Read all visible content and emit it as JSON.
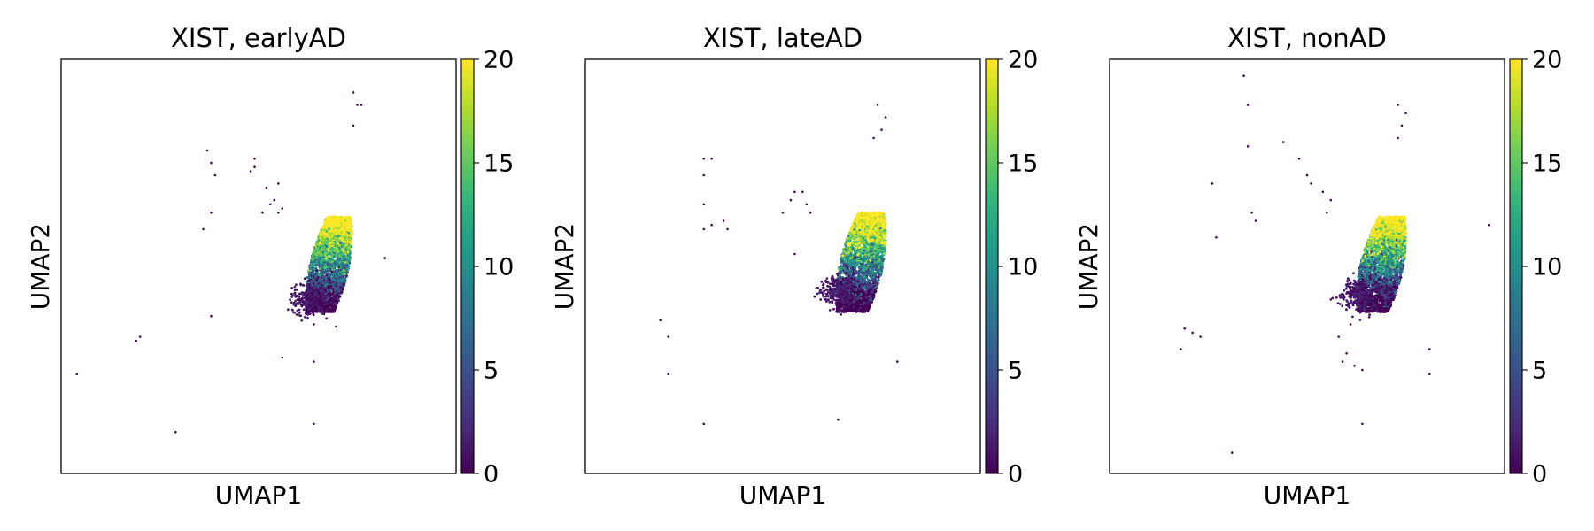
{
  "colormap": {
    "name": "viridis",
    "stops": [
      "#440154",
      "#482878",
      "#3e4989",
      "#31688e",
      "#26828e",
      "#1f9e89",
      "#35b779",
      "#6ece58",
      "#b5de2b",
      "#fde725"
    ]
  },
  "chart_data": [
    {
      "type": "scatter",
      "title": "XIST, earlyAD",
      "xlabel": "UMAP1",
      "ylabel": "UMAP2",
      "color_label": "",
      "color_range": [
        0,
        20
      ],
      "color_ticks": [
        "0",
        "5",
        "10",
        "15",
        "20"
      ],
      "xlim": [
        0,
        10
      ],
      "ylim": [
        0,
        10
      ],
      "grid": false,
      "legend": "colorbar-right",
      "cluster": {
        "center": [
          6.8,
          5.1
        ],
        "top": 6.2,
        "bottom": 3.9,
        "half_width": 0.5,
        "tilt": 0.3,
        "low_tail": [
          6.3,
          4.2
        ],
        "expression_high": 20,
        "expression_low": 0
      },
      "outliers": [
        [
          0.4,
          2.4
        ],
        [
          1.9,
          3.2
        ],
        [
          2.0,
          3.3
        ],
        [
          2.9,
          1.0
        ],
        [
          3.7,
          7.8
        ],
        [
          3.8,
          7.5
        ],
        [
          3.9,
          7.2
        ],
        [
          3.6,
          5.9
        ],
        [
          3.8,
          6.3
        ],
        [
          4.9,
          7.6
        ],
        [
          4.9,
          7.4
        ],
        [
          4.8,
          7.3
        ],
        [
          5.2,
          6.9
        ],
        [
          5.4,
          6.6
        ],
        [
          5.3,
          6.5
        ],
        [
          5.5,
          7.0
        ],
        [
          5.5,
          6.3
        ],
        [
          5.1,
          6.3
        ],
        [
          5.6,
          6.4
        ],
        [
          3.8,
          3.8
        ],
        [
          5.6,
          2.8
        ],
        [
          6.4,
          2.7
        ],
        [
          6.4,
          1.2
        ],
        [
          7.4,
          9.2
        ],
        [
          7.5,
          8.9
        ],
        [
          7.6,
          8.9
        ],
        [
          7.4,
          8.4
        ],
        [
          8.2,
          5.2
        ]
      ]
    },
    {
      "type": "scatter",
      "title": "XIST, lateAD",
      "xlabel": "UMAP1",
      "ylabel": "UMAP2",
      "color_label": "",
      "color_range": [
        0,
        20
      ],
      "color_ticks": [
        "0",
        "5",
        "10",
        "15",
        "20"
      ],
      "xlim": [
        0,
        10
      ],
      "ylim": [
        0,
        10
      ],
      "grid": false,
      "legend": "colorbar-right",
      "cluster": {
        "center": [
          7.0,
          5.1
        ],
        "top": 6.3,
        "bottom": 3.9,
        "half_width": 0.55,
        "tilt": 0.3,
        "low_tail": [
          6.4,
          4.4
        ],
        "expression_high": 20,
        "expression_low": 0
      },
      "outliers": [
        [
          3.0,
          7.6
        ],
        [
          3.2,
          7.6
        ],
        [
          3.0,
          7.2
        ],
        [
          3.0,
          6.5
        ],
        [
          3.0,
          5.9
        ],
        [
          3.2,
          6.0
        ],
        [
          3.5,
          6.1
        ],
        [
          3.6,
          5.9
        ],
        [
          5.2,
          6.6
        ],
        [
          5.3,
          6.8
        ],
        [
          5.5,
          6.8
        ],
        [
          5.6,
          6.5
        ],
        [
          5.7,
          6.3
        ],
        [
          5.0,
          6.3
        ],
        [
          5.3,
          5.3
        ],
        [
          1.9,
          3.7
        ],
        [
          2.1,
          3.3
        ],
        [
          2.1,
          2.4
        ],
        [
          3.0,
          1.2
        ],
        [
          6.4,
          1.3
        ],
        [
          7.4,
          8.9
        ],
        [
          7.6,
          8.6
        ],
        [
          7.5,
          8.3
        ],
        [
          7.3,
          8.1
        ],
        [
          7.9,
          2.7
        ]
      ]
    },
    {
      "type": "scatter",
      "title": "XIST, nonAD",
      "xlabel": "UMAP1",
      "ylabel": "UMAP2",
      "color_label": "",
      "color_range": [
        0,
        20
      ],
      "color_ticks": [
        "0",
        "5",
        "10",
        "15",
        "20"
      ],
      "xlim": [
        0,
        10
      ],
      "ylim": [
        0,
        10
      ],
      "grid": false,
      "legend": "colorbar-right",
      "cluster": {
        "center": [
          6.9,
          5.0
        ],
        "top": 6.2,
        "bottom": 3.9,
        "half_width": 0.55,
        "tilt": 0.3,
        "low_tail": [
          6.3,
          4.3
        ],
        "expression_high": 20,
        "expression_low": 0
      },
      "outliers": [
        [
          3.4,
          9.6
        ],
        [
          3.5,
          8.9
        ],
        [
          3.5,
          7.9
        ],
        [
          4.4,
          8.0
        ],
        [
          4.8,
          7.6
        ],
        [
          5.0,
          7.2
        ],
        [
          5.1,
          7.0
        ],
        [
          5.4,
          6.8
        ],
        [
          5.6,
          6.6
        ],
        [
          5.5,
          6.3
        ],
        [
          3.6,
          6.3
        ],
        [
          3.7,
          6.1
        ],
        [
          2.7,
          5.7
        ],
        [
          2.6,
          7.0
        ],
        [
          1.9,
          3.5
        ],
        [
          2.1,
          3.4
        ],
        [
          2.3,
          3.3
        ],
        [
          1.8,
          3.0
        ],
        [
          3.1,
          0.5
        ],
        [
          5.6,
          4.2
        ],
        [
          5.8,
          3.3
        ],
        [
          6.0,
          2.9
        ],
        [
          5.9,
          2.7
        ],
        [
          6.2,
          2.6
        ],
        [
          6.4,
          2.5
        ],
        [
          6.1,
          3.6
        ],
        [
          7.3,
          8.9
        ],
        [
          7.5,
          8.7
        ],
        [
          7.4,
          8.4
        ],
        [
          7.3,
          8.1
        ],
        [
          8.1,
          3.0
        ],
        [
          8.1,
          2.4
        ],
        [
          6.4,
          1.2
        ],
        [
          9.6,
          6.0
        ]
      ]
    }
  ]
}
